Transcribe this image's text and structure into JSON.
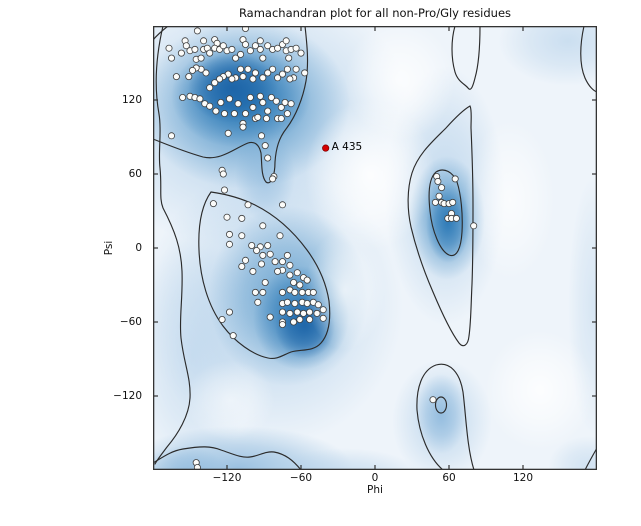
{
  "title": "Ramachandran plot for all non-Pro/Gly residues",
  "chart_data": {
    "type": "scatter",
    "title": "Ramachandran plot for all non-Pro/Gly residues",
    "xlabel": "Phi",
    "ylabel": "Psi",
    "xlim": [
      -180,
      180
    ],
    "ylim": [
      -180,
      180
    ],
    "grid": false,
    "legend": "none",
    "x_tick_values": [
      -120,
      -60,
      0,
      60,
      120
    ],
    "x_tick_labels": [
      "−120",
      "−60",
      "0",
      "60",
      "120"
    ],
    "y_tick_values": [
      120,
      60,
      0,
      -60,
      -120
    ],
    "y_tick_labels": [
      "120",
      "60",
      "0",
      "−60",
      "−120"
    ],
    "background_description": "blue kernel-density shading with black contour lines over favored/allowed Ramachandran regions",
    "colors": {
      "plot_background": "#eef4fa",
      "density_core": "#1b62a6",
      "density_mid2": "#2272b2",
      "density_mid": "#4a90c4",
      "density_light": "#aecde8",
      "density_band": "#7fb0d8",
      "contour_line": "#2b2b2b",
      "spine": "#333333",
      "point_fill": "#fcfcfa",
      "point_stroke": "#3f3f3f",
      "outlier_red": "#d40000"
    },
    "series": [
      {
        "name": "residues",
        "marker": "circle",
        "points": [
          [
            -167,
            162
          ],
          [
            -165,
            154
          ],
          [
            -157,
            158
          ],
          [
            -154,
            168
          ],
          [
            -153,
            164
          ],
          [
            -150,
            160
          ],
          [
            -146,
            161
          ],
          [
            -145,
            153
          ],
          [
            -144,
            176
          ],
          [
            -141,
            154
          ],
          [
            -139,
            168
          ],
          [
            -139,
            161
          ],
          [
            -136,
            162
          ],
          [
            -134,
            158
          ],
          [
            -130,
            169
          ],
          [
            -128,
            166
          ],
          [
            -130,
            162
          ],
          [
            -126,
            161
          ],
          [
            -123,
            164
          ],
          [
            -120,
            160
          ],
          [
            -116,
            161
          ],
          [
            -113,
            154
          ],
          [
            -109,
            157
          ],
          [
            -107,
            169
          ],
          [
            -105,
            178
          ],
          [
            -105,
            165
          ],
          [
            -101,
            160
          ],
          [
            -97,
            164
          ],
          [
            -93,
            168
          ],
          [
            -93,
            161
          ],
          [
            -91,
            154
          ],
          [
            -87,
            164
          ],
          [
            -83,
            161
          ],
          [
            -79,
            162
          ],
          [
            -75,
            165
          ],
          [
            -72,
            168
          ],
          [
            -72,
            160
          ],
          [
            -70,
            154
          ],
          [
            -68,
            161
          ],
          [
            -64,
            162
          ],
          [
            -60,
            158
          ],
          [
            -57,
            142
          ],
          [
            -64,
            145
          ],
          [
            -66,
            138
          ],
          [
            -71,
            145
          ],
          [
            -69,
            137
          ],
          [
            -75,
            141
          ],
          [
            -79,
            138
          ],
          [
            -83,
            145
          ],
          [
            -87,
            142
          ],
          [
            -91,
            138
          ],
          [
            -97,
            142
          ],
          [
            -99,
            137
          ],
          [
            -103,
            145
          ],
          [
            -107,
            139
          ],
          [
            -109,
            145
          ],
          [
            -113,
            138
          ],
          [
            -116,
            137
          ],
          [
            -119,
            141
          ],
          [
            -123,
            139
          ],
          [
            -126,
            137
          ],
          [
            -130,
            134
          ],
          [
            -134,
            130
          ],
          [
            -137,
            142
          ],
          [
            -141,
            145
          ],
          [
            -145,
            146
          ],
          [
            -148,
            144
          ],
          [
            -151,
            139
          ],
          [
            -161,
            139
          ],
          [
            -156,
            122
          ],
          [
            -150,
            123
          ],
          [
            -146,
            122
          ],
          [
            -142,
            121
          ],
          [
            -138,
            117
          ],
          [
            -134,
            115
          ],
          [
            -129,
            111
          ],
          [
            -125,
            118
          ],
          [
            -122,
            109
          ],
          [
            -118,
            121
          ],
          [
            -114,
            109
          ],
          [
            -111,
            117
          ],
          [
            -107,
            101
          ],
          [
            -105,
            109
          ],
          [
            -101,
            122
          ],
          [
            -99,
            114
          ],
          [
            -97,
            105
          ],
          [
            -93,
            123
          ],
          [
            -91,
            118
          ],
          [
            -88,
            105
          ],
          [
            -87,
            111
          ],
          [
            -84,
            122
          ],
          [
            -80,
            119
          ],
          [
            -79,
            105
          ],
          [
            -76,
            114
          ],
          [
            -73,
            118
          ],
          [
            -71,
            109
          ],
          [
            -68,
            117
          ],
          [
            -95,
            106
          ],
          [
            -76,
            105
          ],
          [
            -165,
            91
          ],
          [
            -119,
            93
          ],
          [
            -107,
            98
          ],
          [
            -92,
            91
          ],
          [
            -89,
            83
          ],
          [
            -87,
            73
          ],
          [
            -82,
            58
          ],
          [
            -124,
            63
          ],
          [
            -123,
            60
          ],
          [
            -83,
            56
          ],
          [
            -122,
            47
          ],
          [
            -131,
            36
          ],
          [
            -103,
            35
          ],
          [
            -75,
            35
          ],
          [
            -120,
            25
          ],
          [
            -108,
            24
          ],
          [
            -91,
            18
          ],
          [
            -118,
            11
          ],
          [
            -108,
            10
          ],
          [
            -77,
            10
          ],
          [
            -118,
            3
          ],
          [
            -100,
            2
          ],
          [
            -93,
            1
          ],
          [
            -87,
            2
          ],
          [
            -96,
            -2
          ],
          [
            -91,
            -6
          ],
          [
            -85,
            -5
          ],
          [
            -105,
            -10
          ],
          [
            -92,
            -13
          ],
          [
            -81,
            -11
          ],
          [
            -75,
            -11
          ],
          [
            -108,
            -15
          ],
          [
            -99,
            -19
          ],
          [
            -71,
            -6
          ],
          [
            -69,
            -14
          ],
          [
            -75,
            -18
          ],
          [
            -79,
            -19
          ],
          [
            -69,
            -22
          ],
          [
            -63,
            -20
          ],
          [
            -58,
            -24
          ],
          [
            -89,
            -28
          ],
          [
            -66,
            -28
          ],
          [
            -61,
            -30
          ],
          [
            -55,
            -26
          ],
          [
            -97,
            -36
          ],
          [
            -91,
            -36
          ],
          [
            -75,
            -36
          ],
          [
            -69,
            -34
          ],
          [
            -65,
            -36
          ],
          [
            -59,
            -36
          ],
          [
            -54,
            -36
          ],
          [
            -50,
            -36
          ],
          [
            -95,
            -44
          ],
          [
            -75,
            -45
          ],
          [
            -71,
            -44
          ],
          [
            -65,
            -45
          ],
          [
            -59,
            -44
          ],
          [
            -55,
            -45
          ],
          [
            -50,
            -44
          ],
          [
            -46,
            -46
          ],
          [
            -42,
            -50
          ],
          [
            -118,
            -52
          ],
          [
            -75,
            -52
          ],
          [
            -69,
            -53
          ],
          [
            -63,
            -52
          ],
          [
            -58,
            -53
          ],
          [
            -53,
            -52
          ],
          [
            -47,
            -53
          ],
          [
            -124,
            -58
          ],
          [
            -85,
            -56
          ],
          [
            -75,
            -60
          ],
          [
            -66,
            -60
          ],
          [
            -61,
            -58
          ],
          [
            -53,
            -58
          ],
          [
            -42,
            -57
          ],
          [
            -115,
            -71
          ],
          [
            -75,
            -62
          ],
          [
            50,
            58
          ],
          [
            51,
            54
          ],
          [
            65,
            56
          ],
          [
            54,
            49
          ],
          [
            52,
            42
          ],
          [
            49,
            37
          ],
          [
            54,
            37
          ],
          [
            56,
            36
          ],
          [
            60,
            36
          ],
          [
            63,
            37
          ],
          [
            62,
            28
          ],
          [
            59,
            24
          ],
          [
            62,
            24
          ],
          [
            66,
            24
          ],
          [
            80,
            18
          ],
          [
            47,
            -123
          ],
          [
            -145,
            -174
          ],
          [
            -144,
            -178
          ]
        ]
      },
      {
        "name": "outlier",
        "label": "A 435",
        "marker": "circle",
        "points": [
          [
            -40,
            81
          ]
        ]
      }
    ]
  }
}
